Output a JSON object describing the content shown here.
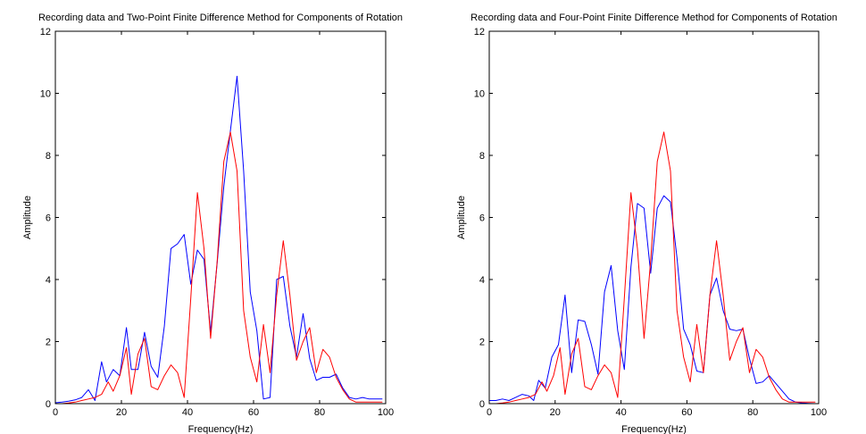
{
  "figure": {
    "background": "#ffffff",
    "axis_color": "#000000"
  },
  "chart_data": [
    {
      "type": "line",
      "title": "Recording data and Two-Point Finite Difference Method for Components of Rotation",
      "xlabel": "Frequency(Hz)",
      "ylabel": "Amplitude",
      "xlim": [
        0,
        100
      ],
      "ylim": [
        0,
        12
      ],
      "xticks": [
        0,
        20,
        40,
        60,
        80,
        100
      ],
      "yticks": [
        0,
        2,
        4,
        6,
        8,
        10,
        12
      ],
      "grid": false,
      "legend": "none",
      "series": [
        {
          "color": "#0000ff",
          "x": [
            0,
            2,
            4,
            6,
            8,
            10,
            12,
            14,
            15.5,
            17.5,
            19.5,
            21.5,
            23,
            25,
            27,
            29,
            31,
            33,
            35,
            37,
            39,
            41,
            43,
            45,
            47,
            49,
            51,
            53,
            55,
            57,
            59,
            61,
            63,
            65,
            67,
            69,
            71,
            73,
            75,
            77,
            79,
            81,
            83,
            85,
            87,
            89,
            91,
            93,
            95,
            97,
            99
          ],
          "y": [
            0.03,
            0.05,
            0.08,
            0.12,
            0.2,
            0.45,
            0.1,
            1.35,
            0.7,
            1.1,
            0.9,
            2.45,
            1.1,
            1.1,
            2.3,
            1.2,
            0.85,
            2.5,
            5.0,
            5.15,
            5.45,
            3.85,
            4.95,
            4.65,
            2.3,
            4.55,
            7.0,
            8.8,
            10.55,
            7.5,
            3.6,
            2.35,
            0.15,
            0.2,
            4.0,
            4.1,
            2.5,
            1.5,
            2.9,
            1.45,
            0.75,
            0.85,
            0.85,
            0.95,
            0.5,
            0.2,
            0.15,
            0.2,
            0.15,
            0.15,
            0.15
          ]
        },
        {
          "color": "#ff0000",
          "x": [
            0,
            2,
            4,
            6,
            8,
            10,
            12,
            14,
            16,
            17.5,
            19.5,
            21.5,
            23,
            25,
            27,
            29,
            31,
            33,
            35,
            37,
            39,
            41,
            43,
            45,
            47,
            49,
            51,
            53,
            55,
            57,
            59,
            61,
            63,
            65,
            67,
            69,
            71,
            73,
            75,
            77,
            79,
            81,
            83,
            85,
            87,
            89,
            91,
            93,
            95,
            97,
            99
          ],
          "y": [
            0.0,
            0.0,
            0.02,
            0.05,
            0.1,
            0.15,
            0.2,
            0.3,
            0.7,
            0.4,
            0.9,
            1.8,
            0.3,
            1.6,
            2.1,
            0.55,
            0.45,
            0.9,
            1.25,
            1.0,
            0.2,
            3.4,
            6.8,
            5.0,
            2.1,
            4.6,
            7.8,
            8.75,
            7.5,
            3.0,
            1.5,
            0.7,
            2.55,
            1.0,
            3.5,
            5.25,
            3.5,
            1.4,
            2.0,
            2.45,
            1.0,
            1.75,
            1.5,
            0.85,
            0.45,
            0.15,
            0.05,
            0.05,
            0.05,
            0.05,
            0.05
          ]
        }
      ]
    },
    {
      "type": "line",
      "title": "Recording data and Four-Point Finite Difference Method for Components of Rotation",
      "xlabel": "Frequency(Hz)",
      "ylabel": "Amplitude",
      "xlim": [
        0,
        100
      ],
      "ylim": [
        0,
        12
      ],
      "xticks": [
        0,
        20,
        40,
        60,
        80,
        100
      ],
      "yticks": [
        0,
        2,
        4,
        6,
        8,
        10,
        12
      ],
      "grid": false,
      "legend": "none",
      "series": [
        {
          "color": "#0000ff",
          "x": [
            0,
            2,
            4,
            6,
            8,
            10,
            12,
            13.5,
            15,
            17,
            19,
            21,
            23,
            25,
            27,
            29,
            31,
            33,
            35,
            37,
            39,
            41,
            43,
            45,
            47,
            49,
            51,
            53,
            55,
            57,
            59,
            61,
            63,
            65,
            67,
            69,
            71,
            73,
            75,
            77,
            79,
            81,
            83,
            85,
            87,
            89,
            91,
            93,
            95,
            97,
            99
          ],
          "y": [
            0.1,
            0.1,
            0.15,
            0.1,
            0.2,
            0.3,
            0.25,
            0.1,
            0.75,
            0.5,
            1.5,
            1.9,
            3.5,
            1.0,
            2.7,
            2.65,
            1.9,
            0.95,
            3.6,
            4.45,
            2.35,
            1.1,
            4.4,
            6.45,
            6.3,
            4.2,
            6.3,
            6.7,
            6.5,
            4.7,
            2.4,
            1.9,
            1.05,
            1.0,
            3.5,
            4.05,
            3.0,
            2.4,
            2.35,
            2.4,
            1.45,
            0.65,
            0.7,
            0.9,
            0.65,
            0.4,
            0.15,
            0.05,
            0.02,
            0.01,
            0.0
          ]
        },
        {
          "color": "#ff0000",
          "x": [
            0,
            2,
            4,
            6,
            8,
            10,
            12,
            14,
            16,
            17.5,
            19.5,
            21.5,
            23,
            25,
            27,
            29,
            31,
            33,
            35,
            37,
            39,
            41,
            43,
            45,
            47,
            49,
            51,
            53,
            55,
            57,
            59,
            61,
            63,
            65,
            67,
            69,
            71,
            73,
            75,
            77,
            79,
            81,
            83,
            85,
            87,
            89,
            91,
            93,
            95,
            97,
            99
          ],
          "y": [
            0.0,
            0.0,
            0.02,
            0.05,
            0.1,
            0.15,
            0.2,
            0.3,
            0.7,
            0.4,
            0.9,
            1.8,
            0.3,
            1.6,
            2.1,
            0.55,
            0.45,
            0.9,
            1.25,
            1.0,
            0.2,
            3.4,
            6.8,
            5.0,
            2.1,
            4.6,
            7.8,
            8.75,
            7.5,
            3.0,
            1.5,
            0.7,
            2.55,
            1.0,
            3.5,
            5.25,
            3.5,
            1.4,
            2.0,
            2.45,
            1.0,
            1.75,
            1.5,
            0.85,
            0.45,
            0.15,
            0.05,
            0.05,
            0.05,
            0.05,
            0.05
          ]
        }
      ]
    }
  ]
}
